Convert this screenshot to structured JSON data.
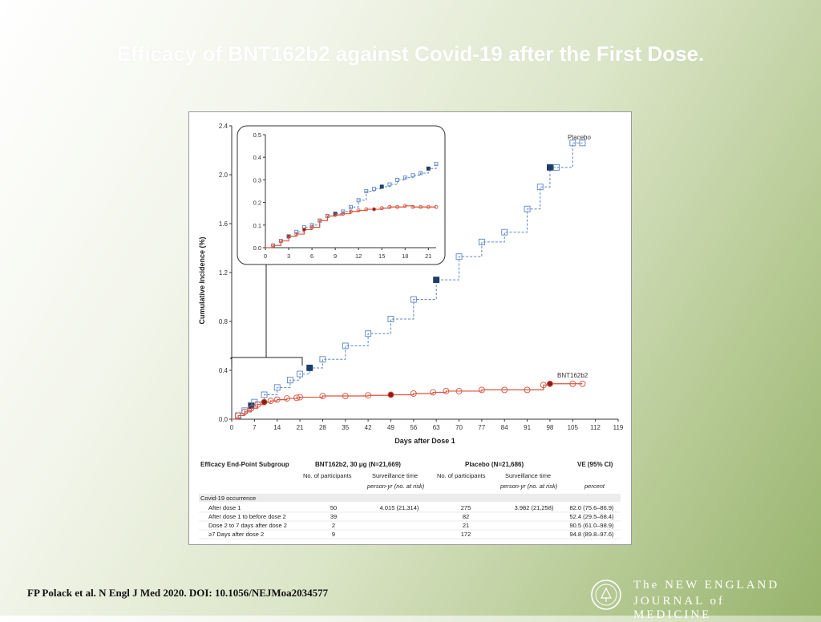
{
  "slide": {
    "title": "Efficacy of BNT162b2 against Covid-19 after the First Dose.",
    "citation": "FP Polack et al. N Engl J Med 2020. DOI: 10.1056/NEJMoa2034577",
    "logo_line1": "The NEW ENGLAND",
    "logo_line2": "JOURNAL of MEDICINE"
  },
  "colors": {
    "placebo": "#5b86c5",
    "bnt": "#d9543f",
    "dark_marker": "#1f3d66"
  },
  "chart_data": [
    {
      "type": "line",
      "title": "",
      "xlabel": "Days after Dose 1",
      "ylabel": "Cumulative Incidence (%)",
      "xlim": [
        0,
        119
      ],
      "ylim": [
        0,
        2.4
      ],
      "xticks": [
        "0",
        "7",
        "14",
        "21",
        "28",
        "35",
        "42",
        "49",
        "56",
        "63",
        "70",
        "77",
        "84",
        "91",
        "98",
        "105",
        "112",
        "119"
      ],
      "yticks": [
        "0.0",
        "0.4",
        "0.8",
        "1.2",
        "1.6",
        "2.0",
        "2.4"
      ],
      "annotations": [
        "Placebo",
        "BNT162b2"
      ],
      "series": [
        {
          "name": "Placebo",
          "x": [
            0,
            2,
            4,
            6,
            7,
            10,
            14,
            18,
            21,
            24,
            28,
            35,
            42,
            49,
            56,
            63,
            70,
            77,
            84,
            91,
            95,
            98,
            100,
            105,
            108
          ],
          "y": [
            0.0,
            0.03,
            0.07,
            0.11,
            0.14,
            0.2,
            0.26,
            0.32,
            0.37,
            0.42,
            0.49,
            0.6,
            0.7,
            0.82,
            0.98,
            1.14,
            1.33,
            1.45,
            1.53,
            1.72,
            1.9,
            2.06,
            2.06,
            2.26,
            2.26
          ]
        },
        {
          "name": "BNT162b2",
          "x": [
            0,
            2,
            4,
            6,
            8,
            10,
            12,
            14,
            17,
            20,
            21,
            28,
            35,
            42,
            49,
            56,
            62,
            66,
            70,
            77,
            84,
            91,
            96,
            98,
            105,
            108
          ],
          "y": [
            0.0,
            0.03,
            0.06,
            0.09,
            0.12,
            0.14,
            0.15,
            0.16,
            0.17,
            0.175,
            0.18,
            0.19,
            0.19,
            0.195,
            0.2,
            0.21,
            0.22,
            0.23,
            0.23,
            0.24,
            0.24,
            0.24,
            0.28,
            0.29,
            0.29,
            0.29
          ]
        }
      ]
    },
    {
      "type": "line",
      "title": "",
      "xlabel": "",
      "ylabel": "",
      "xlim": [
        0,
        22
      ],
      "ylim": [
        0,
        0.5
      ],
      "xticks": [
        "0",
        "3",
        "6",
        "9",
        "12",
        "15",
        "18",
        "21"
      ],
      "yticks": [
        "0.0",
        "0.1",
        "0.2",
        "0.3",
        "0.4",
        "0.5"
      ],
      "series": [
        {
          "name": "Placebo",
          "x": [
            0,
            1,
            2,
            3,
            4,
            5,
            6,
            7,
            8,
            9,
            10,
            11,
            12,
            13,
            14,
            15,
            16,
            17,
            18,
            19,
            20,
            21,
            22
          ],
          "y": [
            0.0,
            0.01,
            0.03,
            0.05,
            0.07,
            0.09,
            0.1,
            0.12,
            0.14,
            0.15,
            0.16,
            0.18,
            0.21,
            0.25,
            0.26,
            0.27,
            0.28,
            0.3,
            0.31,
            0.32,
            0.33,
            0.35,
            0.37
          ]
        },
        {
          "name": "BNT162b2",
          "x": [
            0,
            1,
            2,
            3,
            4,
            5,
            6,
            7,
            8,
            9,
            10,
            11,
            12,
            13,
            14,
            15,
            16,
            17,
            18,
            19,
            20,
            21,
            22
          ],
          "y": [
            0.0,
            0.01,
            0.03,
            0.05,
            0.06,
            0.08,
            0.09,
            0.12,
            0.14,
            0.145,
            0.15,
            0.16,
            0.165,
            0.17,
            0.17,
            0.175,
            0.18,
            0.18,
            0.185,
            0.18,
            0.18,
            0.18,
            0.18
          ]
        }
      ]
    },
    {
      "type": "table",
      "header": {
        "col1": "Efficacy End-Point Subgroup",
        "col_bnt": "BNT162b2, 30 μg (N=21,669)",
        "col_pla": "Placebo (N=21,686)",
        "col_ve": "VE (95% CI)",
        "sub_participants": "No. of participants",
        "sub_surv": "Surveillance time",
        "sub_personyr": "person-yr (no. at risk)",
        "sub_percent": "percent"
      },
      "section_label": "Covid-19 occurrence",
      "rows": [
        {
          "label": "After dose 1",
          "bnt_n": "50",
          "bnt_surv": "4.015 (21,314)",
          "pla_n": "275",
          "pla_surv": "3.982 (21,258)",
          "ve": "82.0 (75.6–86.9)"
        },
        {
          "label": "After dose 1 to before dose 2",
          "bnt_n": "39",
          "bnt_surv": "",
          "pla_n": "82",
          "pla_surv": "",
          "ve": "52.4 (29.5–68.4)"
        },
        {
          "label": "Dose 2 to 7 days after dose 2",
          "bnt_n": "2",
          "bnt_surv": "",
          "pla_n": "21",
          "pla_surv": "",
          "ve": "90.5 (61.0–98.9)"
        },
        {
          "label": "≥7 Days after dose 2",
          "bnt_n": "9",
          "bnt_surv": "",
          "pla_n": "172",
          "pla_surv": "",
          "ve": "94.8 (89.8–97.6)"
        }
      ]
    }
  ]
}
